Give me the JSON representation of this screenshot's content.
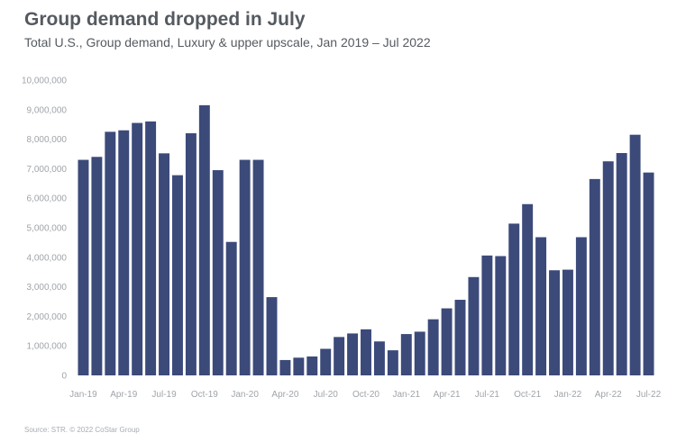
{
  "header": {
    "title": "Group demand dropped in July",
    "subtitle": "Total U.S., Group demand, Luxury & upper upscale, Jan 2019 – Jul 2022"
  },
  "footer": {
    "source": "Source: STR. © 2022 CoStar Group"
  },
  "colors": {
    "bar": "#3c4a7a",
    "text": "#555a60",
    "tick": "#a0a4aa"
  },
  "chart_data": {
    "type": "bar",
    "title": "Group demand dropped in July",
    "xlabel": "",
    "ylabel": "",
    "ylim": [
      0,
      10000000
    ],
    "grid": false,
    "yticks": [
      0,
      1000000,
      2000000,
      3000000,
      4000000,
      5000000,
      6000000,
      7000000,
      8000000,
      9000000,
      10000000
    ],
    "ytick_labels": [
      "0",
      "1,000,000",
      "2,000,000",
      "3,000,000",
      "4,000,000",
      "5,000,000",
      "6,000,000",
      "7,000,000",
      "8,000,000",
      "9,000,000",
      "10,000,000"
    ],
    "xtick_labels": [
      {
        "index": 0,
        "label": "Jan-19"
      },
      {
        "index": 3,
        "label": "Apr-19"
      },
      {
        "index": 6,
        "label": "Jul-19"
      },
      {
        "index": 9,
        "label": "Oct-19"
      },
      {
        "index": 12,
        "label": "Jan-20"
      },
      {
        "index": 15,
        "label": "Apr-20"
      },
      {
        "index": 18,
        "label": "Jul-20"
      },
      {
        "index": 21,
        "label": "Oct-20"
      },
      {
        "index": 24,
        "label": "Jan-21"
      },
      {
        "index": 27,
        "label": "Apr-21"
      },
      {
        "index": 30,
        "label": "Jul-21"
      },
      {
        "index": 33,
        "label": "Oct-21"
      },
      {
        "index": 36,
        "label": "Jan-22"
      },
      {
        "index": 39,
        "label": "Apr-22"
      },
      {
        "index": 42,
        "label": "Jul-22"
      }
    ],
    "categories": [
      "Jan-19",
      "Feb-19",
      "Mar-19",
      "Apr-19",
      "May-19",
      "Jun-19",
      "Jul-19",
      "Aug-19",
      "Sep-19",
      "Oct-19",
      "Nov-19",
      "Dec-19",
      "Jan-20",
      "Feb-20",
      "Mar-20",
      "Apr-20",
      "May-20",
      "Jun-20",
      "Jul-20",
      "Aug-20",
      "Sep-20",
      "Oct-20",
      "Nov-20",
      "Dec-20",
      "Jan-21",
      "Feb-21",
      "Mar-21",
      "Apr-21",
      "May-21",
      "Jun-21",
      "Jul-21",
      "Aug-21",
      "Sep-21",
      "Oct-21",
      "Nov-21",
      "Dec-21",
      "Jan-22",
      "Feb-22",
      "Mar-22",
      "Apr-22",
      "May-22",
      "Jun-22",
      "Jul-22"
    ],
    "values": [
      7300000,
      7400000,
      8250000,
      8300000,
      8550000,
      8600000,
      7520000,
      6780000,
      8200000,
      9150000,
      6950000,
      4520000,
      7300000,
      7300000,
      2650000,
      520000,
      600000,
      640000,
      900000,
      1300000,
      1420000,
      1560000,
      1150000,
      850000,
      1400000,
      1480000,
      1900000,
      2270000,
      2560000,
      3330000,
      4060000,
      4040000,
      5140000,
      5800000,
      4680000,
      3560000,
      3580000,
      4680000,
      6650000,
      7250000,
      7530000,
      8150000,
      6870000
    ]
  }
}
